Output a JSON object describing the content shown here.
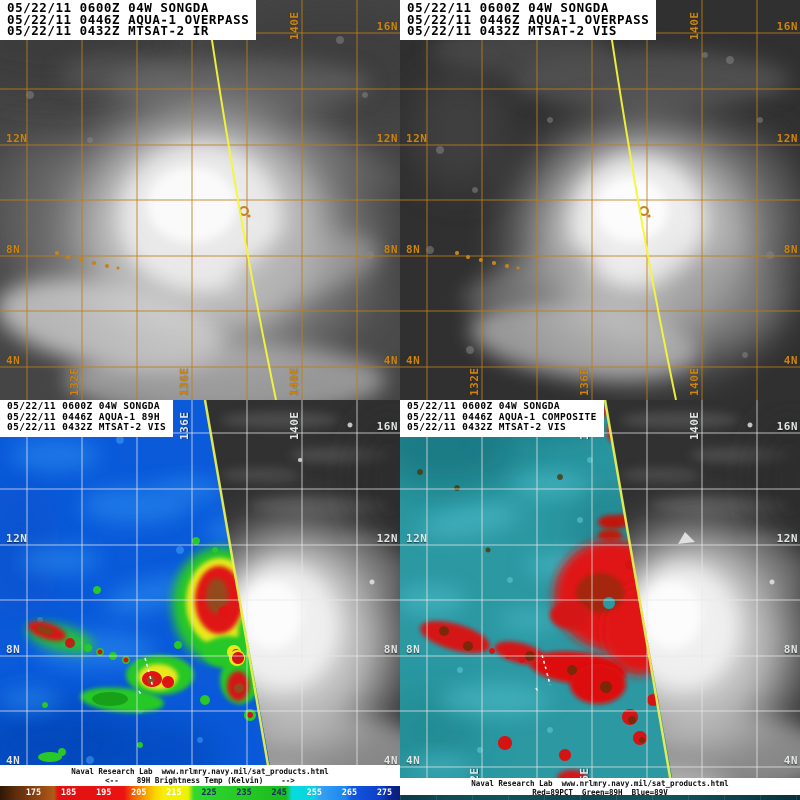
{
  "quadrants": {
    "tl": {
      "header_lines": [
        "05/22/11 0600Z 04W SONGDA",
        "05/22/11 0446Z AQUA-1 OVERPASS",
        "05/22/11 0432Z MTSAT-2 IR"
      ]
    },
    "tr": {
      "header_lines": [
        "05/22/11 0600Z 04W SONGDA",
        "05/22/11 0446Z AQUA-1 OVERPASS",
        "05/22/11 0432Z MTSAT-2 VIS"
      ]
    },
    "bl": {
      "header_lines": [
        "05/22/11 0600Z 04W SONGDA",
        "05/22/11 0446Z AQUA-1 89H",
        "05/22/11 0432Z MTSAT-2 VIS"
      ]
    },
    "br": {
      "header_lines": [
        "05/22/11 0600Z 04W SONGDA",
        "05/22/11 0446Z AQUA-1 COMPOSITE",
        "05/22/11 0432Z MTSAT-2 VIS"
      ]
    }
  },
  "grid_labels": {
    "latitude": [
      "16N",
      "12N",
      "8N",
      "4N"
    ],
    "longitude": [
      "132E",
      "136E",
      "140E"
    ]
  },
  "footer_left": {
    "line1": "Naval Research Lab  www.nrlmry.navy.mil/sat_products.html",
    "line2": "<--    89H Brightness Temp (Kelvin)    -->"
  },
  "footer_right": {
    "line1": "Naval Research Lab  www.nrlmry.navy.mil/sat_products.html",
    "line2": "Red=89PCT  Green=89H  Blue=89V"
  },
  "colorbar": {
    "title": "89H Brightness Temp (Kelvin)",
    "tick_labels": [
      "175",
      "185",
      "195",
      "205",
      "215",
      "225",
      "235",
      "245",
      "255",
      "265",
      "275"
    ]
  },
  "colors": {
    "grid_top_quadrants": "#cc8510",
    "grid_bottom_quadrants": "#e4e4e4",
    "overpass_track_line": "#f5f53a",
    "swath_edge_line": "#e9ef55",
    "overlay_89h_background": "#0a5ada",
    "overlay_composite_background": "#2b98a2"
  }
}
